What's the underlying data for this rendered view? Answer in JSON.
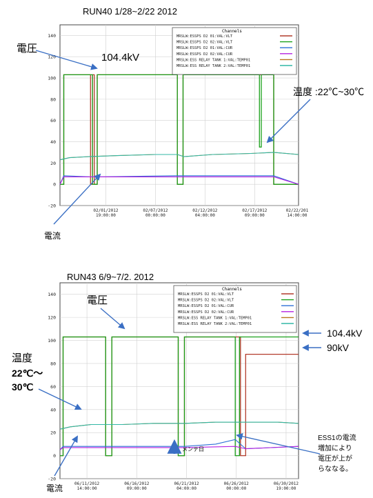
{
  "colors": {
    "voltage1": "#b23a2a",
    "voltage2": "#19a019",
    "current1": "#2b6fd6",
    "current2": "#b51fe0",
    "temp1": "#b8741c",
    "temp2": "#31b7a5",
    "annotation_arrow": "#3a6fc4"
  },
  "charts": [
    {
      "title": "RUN40   1/28~2/22   2012",
      "legend_title": "Channels",
      "legend": [
        "MRSLW:ESSPS D2 01:VAL:VLT",
        "MRSLW:ESSPS D2 02:VAL:VLT",
        "MRSLW:ESSPS D2 01:VAL:CUR",
        "MRSLW:ESSPS D2 02:VAL:CUR",
        "MRSLW:ESS RELAY TANK 1:VAL:TEMP01",
        "MRSLW:ESS RELAY TANK 2:VAL:TEMP01"
      ],
      "annotations": {
        "voltage": "電圧",
        "voltage_value": "104.4kV",
        "temp": "温度 :22℃~30℃",
        "current": "電流"
      }
    },
    {
      "title": "RUN43   6/9~7/2. 2012",
      "legend_title": "Channels",
      "legend": [
        "MRSLW:ESSPS D2 01:VAL:VLT",
        "MRSLW:ESSPS D2 02:VAL:VLT",
        "MRSLW:ESSPS D2 01:VAL:CUR",
        "MRSLW:ESSPS D2 02:VAL:CUR",
        "MRSLW:ESS RELAY TANK 1:VAL:TEMP01",
        "MRSLW:ESS RELAY TANK 2:VAL:TEMP01"
      ],
      "annotations": {
        "voltage": "電圧",
        "temp1": "温度",
        "temp2": "22℃～",
        "temp3": "30℃",
        "current": "電流",
        "maintenance": "メンテ日",
        "v1044": "104.4kV",
        "v90": "90kV",
        "note1": "ESS1の電流",
        "note2": "増加により",
        "note3": "電圧が上が",
        "note4": "らななる。"
      }
    }
  ],
  "chart_data": [
    {
      "type": "line",
      "title": "RUN40   1/28~2/22   2012",
      "ylim": [
        -20,
        150
      ],
      "yticks": [
        -20,
        0,
        20,
        40,
        60,
        80,
        100,
        120,
        140
      ],
      "xticks": [
        "02/01/2012\n19:00:00",
        "02/07/2012\n00:00:00",
        "02/12/2012\n04:00:00",
        "02/17/2012\n09:00:00",
        "02/22/201\n14:00:00"
      ],
      "xrange_days": [
        0,
        25
      ],
      "xtick_days": [
        4.8,
        10.0,
        15.2,
        20.4,
        25.6
      ],
      "series": [
        {
          "name": "MRSLW:ESSPS D2 01:VAL:VLT",
          "x": [
            0,
            0.4,
            0.4,
            3.2,
            3.2,
            3.4,
            3.4,
            3.6,
            3.6,
            3.9,
            3.9,
            12.3,
            12.3,
            12.9,
            12.9,
            22.4,
            22.4,
            25
          ],
          "y": [
            0,
            0,
            103,
            103,
            0,
            0,
            103,
            103,
            0,
            0,
            103,
            103,
            0,
            0,
            103,
            103,
            0,
            0
          ]
        },
        {
          "name": "MRSLW:ESSPS D2 02:VAL:VLT",
          "x": [
            0,
            0.4,
            0.4,
            3.4,
            3.4,
            3.9,
            3.9,
            12.3,
            12.3,
            12.9,
            12.9,
            20.9,
            20.9,
            21.1,
            21.1,
            22.4,
            22.4,
            25
          ],
          "y": [
            0,
            0,
            103,
            103,
            0,
            0,
            103,
            103,
            0,
            0,
            103,
            103,
            35,
            35,
            103,
            103,
            0,
            0
          ]
        },
        {
          "name": "MRSLW:ESSPS D2 01:VAL:CUR",
          "x": [
            0,
            0.4,
            3.2,
            3.9,
            12.3,
            12.9,
            22.4,
            25
          ],
          "y": [
            0,
            8,
            7,
            7,
            8,
            8,
            8,
            0
          ]
        },
        {
          "name": "MRSLW:ESSPS D2 02:VAL:CUR",
          "x": [
            0,
            0.4,
            3.2,
            3.9,
            12.3,
            12.9,
            22.4,
            25
          ],
          "y": [
            0,
            7,
            7,
            7,
            7,
            7,
            7,
            0
          ]
        },
        {
          "name": "MRSLW:ESS RELAY TANK 1:VAL:TEMP01",
          "x": [
            0,
            1,
            3,
            6,
            10,
            12.3,
            13,
            16,
            20,
            22.4,
            25
          ],
          "y": [
            23,
            25,
            26,
            27,
            28,
            28,
            26,
            28,
            29,
            30,
            28
          ]
        },
        {
          "name": "MRSLW:ESS RELAY TANK 2:VAL:TEMP01",
          "x": [
            0,
            1,
            3,
            6,
            10,
            12.3,
            13,
            16,
            20,
            22.4,
            25
          ],
          "y": [
            23,
            25,
            26,
            27,
            28,
            28,
            26,
            28,
            29,
            30,
            28
          ]
        }
      ]
    },
    {
      "type": "line",
      "title": "RUN43   6/9~7/2. 2012",
      "ylim": [
        -20,
        150
      ],
      "yticks": [
        -20,
        0,
        20,
        40,
        60,
        80,
        100,
        120,
        140
      ],
      "xticks": [
        "06/11/2012\n14:00:00",
        "06/16/2012\n09:00:00",
        "06/21/2012\n04:00:00",
        "06/26/2012\n00:00:00",
        "06/30/2012\n19:00:00"
      ],
      "xrange_days": [
        0,
        23
      ],
      "xtick_days": [
        2.6,
        7.4,
        12.2,
        17.0,
        21.8
      ],
      "series": [
        {
          "name": "MRSLW:ESSPS D2 01:VAL:VLT",
          "x": [
            0,
            0.3,
            0.3,
            4.4,
            4.4,
            5.0,
            5.0,
            11.4,
            11.4,
            12.0,
            12.0,
            17.4,
            17.4,
            17.9,
            17.9,
            23
          ],
          "y": [
            0,
            0,
            103,
            103,
            0,
            0,
            103,
            103,
            0,
            0,
            103,
            103,
            0,
            0,
            88,
            88
          ]
        },
        {
          "name": "MRSLW:ESSPS D2 02:VAL:VLT",
          "x": [
            0,
            0.3,
            0.3,
            4.4,
            4.4,
            5.0,
            5.0,
            11.4,
            11.4,
            12.0,
            12.0,
            16.9,
            16.9,
            17.3,
            17.3,
            17.9,
            17.9,
            23
          ],
          "y": [
            0,
            0,
            103,
            103,
            0,
            0,
            103,
            103,
            0,
            0,
            103,
            103,
            0,
            0,
            103,
            103,
            103,
            103
          ]
        },
        {
          "name": "MRSLW:ESSPS D2 01:VAL:CUR",
          "x": [
            0,
            0.3,
            4.4,
            5.0,
            11.4,
            12.0,
            15.0,
            16.9,
            17.9,
            23
          ],
          "y": [
            5,
            8,
            8,
            8,
            8,
            8,
            10,
            14,
            6,
            8
          ]
        },
        {
          "name": "MRSLW:ESSPS D2 02:VAL:CUR",
          "x": [
            0,
            0.3,
            4.4,
            5.0,
            11.4,
            12.0,
            16.9,
            17.9,
            23
          ],
          "y": [
            5,
            7,
            7,
            7,
            7,
            7,
            8,
            6,
            8
          ]
        },
        {
          "name": "MRSLW:ESS RELAY TANK 1:VAL:TEMP01",
          "x": [
            0,
            1,
            3,
            6,
            9,
            12,
            15,
            18,
            21,
            23
          ],
          "y": [
            23,
            25,
            27,
            27,
            28,
            28,
            29,
            29,
            29,
            28
          ]
        },
        {
          "name": "MRSLW:ESS RELAY TANK 2:VAL:TEMP01",
          "x": [
            0,
            1,
            3,
            6,
            9,
            12,
            15,
            18,
            21,
            23
          ],
          "y": [
            23,
            25,
            27,
            27,
            28,
            28,
            29,
            29,
            29,
            28
          ]
        }
      ]
    }
  ]
}
